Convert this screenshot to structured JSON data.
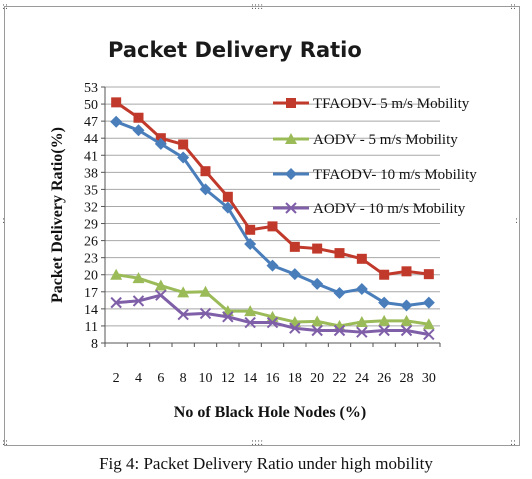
{
  "figure": {
    "caption": "Fig 4: Packet Delivery Ratio under high mobility"
  },
  "chart_data": {
    "type": "line",
    "title": "Packet Delivery Ratio",
    "xlabel": "No of Black Hole Nodes (%)",
    "ylabel": "Packet Delivery Ratio(%)",
    "x": [
      2,
      4,
      6,
      8,
      10,
      12,
      14,
      16,
      18,
      20,
      22,
      24,
      26,
      28,
      30
    ],
    "yticks": [
      8,
      11,
      14,
      17,
      20,
      23,
      26,
      29,
      32,
      35,
      38,
      41,
      44,
      47,
      50,
      53
    ],
    "ylim": [
      8,
      53
    ],
    "grid": true,
    "legend_position": "top-right",
    "series": [
      {
        "name": "TFAODV- 5 m/s Mobility",
        "color": "#c0392b",
        "marker": "square",
        "values": [
          50.3,
          47.6,
          44.0,
          42.9,
          38.2,
          33.7,
          27.9,
          28.5,
          24.9,
          24.6,
          23.8,
          22.8,
          20.0,
          20.6,
          20.1
        ]
      },
      {
        "name": "AODV - 5 m/s Mobility",
        "color": "#9bbb59",
        "marker": "triangle",
        "values": [
          20.0,
          19.4,
          18.1,
          16.9,
          17.0,
          13.6,
          13.6,
          12.6,
          11.7,
          11.8,
          11.0,
          11.7,
          11.9,
          11.9,
          11.3
        ]
      },
      {
        "name": "TFAODV- 10 m/s Mobility",
        "color": "#4a7ebb",
        "marker": "diamond",
        "values": [
          46.9,
          45.4,
          43.0,
          40.6,
          35.0,
          31.8,
          25.4,
          21.6,
          20.1,
          18.4,
          16.8,
          17.5,
          15.1,
          14.6,
          15.1
        ]
      },
      {
        "name": "AODV -  10 m/s Mobility",
        "color": "#7f5fa8",
        "marker": "x",
        "values": [
          15.1,
          15.4,
          16.4,
          13.0,
          13.2,
          12.6,
          11.6,
          11.6,
          10.6,
          10.2,
          10.2,
          9.9,
          10.2,
          10.2,
          9.5
        ]
      }
    ]
  }
}
